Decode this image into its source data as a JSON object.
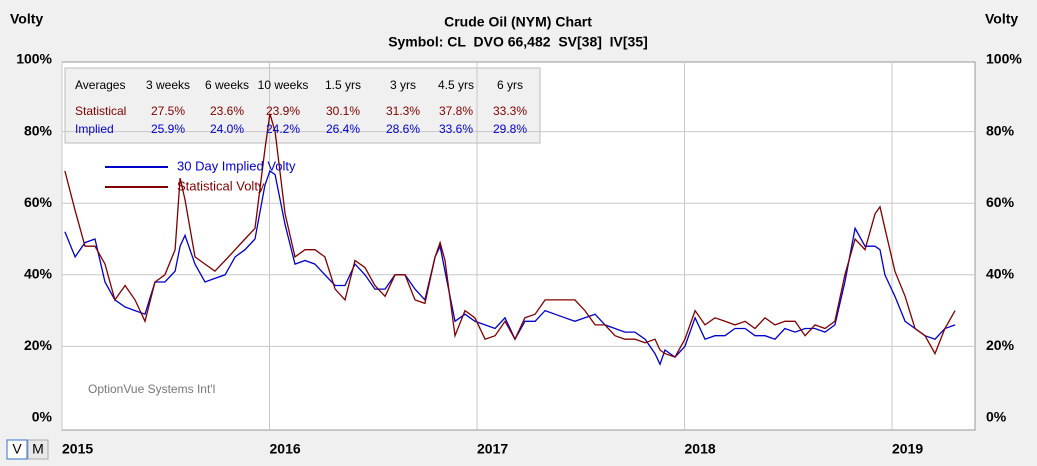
{
  "chart_data": {
    "type": "line",
    "title": "Crude Oil (NYM) Chart",
    "subtitle": "Symbol: CL  DVO 66,482  SV[38]  IV[35]",
    "y_label": "Volty",
    "y2_label": "Volty",
    "watermark": "OptionVue Systems Int'l",
    "xlim": [
      2015,
      2019.4
    ],
    "xticks": [
      2015,
      2016,
      2017,
      2018,
      2019
    ],
    "ylim": [
      0,
      100
    ],
    "yticks": [
      {
        "value": 0,
        "label": "0%"
      },
      {
        "value": 20,
        "label": "20%"
      },
      {
        "value": 40,
        "label": "40%"
      },
      {
        "value": 60,
        "label": "60%"
      },
      {
        "value": 80,
        "label": "80%"
      },
      {
        "value": 100,
        "label": "100%"
      }
    ],
    "grid": true,
    "x": [
      2015.014,
      2015.063,
      2015.111,
      2015.159,
      2015.207,
      2015.255,
      2015.304,
      2015.352,
      2015.4,
      2015.448,
      2015.496,
      2015.545,
      2015.569,
      2015.593,
      2015.641,
      2015.689,
      2015.737,
      2015.786,
      2015.834,
      2015.882,
      2015.93,
      2015.978,
      2016.002,
      2016.027,
      2016.075,
      2016.123,
      2016.171,
      2016.219,
      2016.267,
      2016.316,
      2016.364,
      2016.412,
      2016.46,
      2016.508,
      2016.557,
      2016.605,
      2016.653,
      2016.701,
      2016.749,
      2016.798,
      2016.822,
      2016.846,
      2016.894,
      2016.942,
      2016.99,
      2017.039,
      2017.087,
      2017.135,
      2017.183,
      2017.231,
      2017.28,
      2017.328,
      2017.376,
      2017.424,
      2017.472,
      2017.52,
      2017.569,
      2017.617,
      2017.665,
      2017.713,
      2017.761,
      2017.81,
      2017.858,
      2017.882,
      2017.906,
      2017.954,
      2018.002,
      2018.051,
      2018.099,
      2018.147,
      2018.195,
      2018.243,
      2018.292,
      2018.34,
      2018.388,
      2018.436,
      2018.484,
      2018.533,
      2018.581,
      2018.629,
      2018.677,
      2018.725,
      2018.773,
      2018.822,
      2018.87,
      2018.918,
      2018.942,
      2018.966,
      2019.014,
      2019.063,
      2019.111,
      2019.159,
      2019.207,
      2019.255,
      2019.304
    ],
    "series": [
      {
        "name": "30 Day Implied Volty",
        "color": "#0000cc",
        "values": [
          52,
          45,
          49,
          50,
          38,
          33,
          31,
          30,
          29,
          38,
          38,
          41,
          48,
          51,
          43,
          38,
          39,
          40,
          45,
          47,
          50,
          65,
          69,
          68,
          54,
          43,
          44,
          43,
          40,
          37,
          37,
          43,
          40,
          36,
          36,
          40,
          40,
          36,
          33,
          45,
          48,
          41,
          27,
          29,
          27,
          26,
          25,
          28,
          22,
          27,
          27,
          30,
          29,
          28,
          27,
          28,
          29,
          26,
          25,
          24,
          24,
          22,
          18,
          15,
          19,
          17,
          20,
          28,
          22,
          23,
          23,
          25,
          25,
          23,
          23,
          22,
          25,
          24,
          25,
          25,
          24,
          26,
          38,
          53,
          48,
          48,
          47,
          40,
          34,
          27,
          25,
          23,
          22,
          25,
          26
        ]
      },
      {
        "name": "Statistical Volty",
        "color": "#800000",
        "values": [
          69,
          58,
          48,
          48,
          43,
          33,
          37,
          33,
          27,
          38,
          40,
          47,
          67,
          61,
          45,
          43,
          41,
          44,
          47,
          50,
          53,
          75,
          85,
          80,
          57,
          45,
          47,
          47,
          45,
          36,
          33,
          44,
          42,
          37,
          34,
          40,
          40,
          33,
          32,
          45,
          49,
          44,
          23,
          30,
          28,
          22,
          23,
          27,
          22,
          28,
          29,
          33,
          33,
          33,
          33,
          30,
          26,
          26,
          23,
          22,
          22,
          21,
          22,
          19,
          18,
          17,
          22,
          30,
          26,
          28,
          27,
          26,
          27,
          25,
          28,
          26,
          27,
          27,
          23,
          26,
          25,
          27,
          40,
          50,
          47,
          57,
          59,
          53,
          41,
          34,
          25,
          23,
          18,
          25,
          30
        ]
      }
    ]
  },
  "table": {
    "columns": [
      "Averages",
      "3 weeks",
      "6 weeks",
      "10 weeks",
      "1.5 yrs",
      "3 yrs",
      "4.5 yrs",
      "6 yrs"
    ],
    "rows": [
      [
        "Statistical",
        "27.5%",
        "23.6%",
        "23.9%",
        "30.1%",
        "31.3%",
        "37.8%",
        "33.3%"
      ],
      [
        "Implied",
        "25.9%",
        "24.0%",
        "24.2%",
        "26.4%",
        "28.6%",
        "33.6%",
        "29.8%"
      ]
    ]
  },
  "buttons": [
    "V",
    "M"
  ]
}
